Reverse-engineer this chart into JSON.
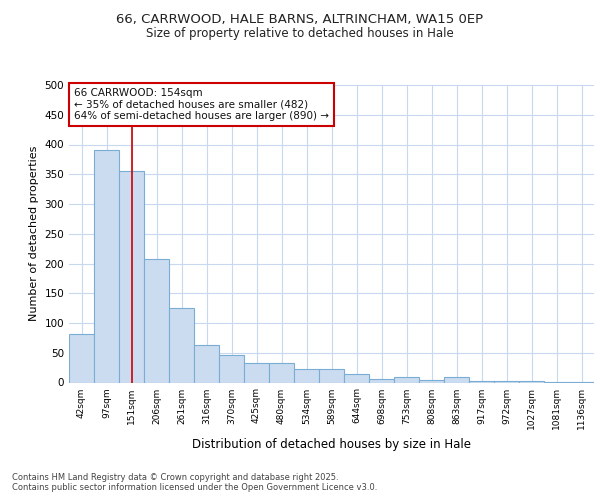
{
  "title_line1": "66, CARRWOOD, HALE BARNS, ALTRINCHAM, WA15 0EP",
  "title_line2": "Size of property relative to detached houses in Hale",
  "xlabel": "Distribution of detached houses by size in Hale",
  "ylabel": "Number of detached properties",
  "bar_labels": [
    "42sqm",
    "97sqm",
    "151sqm",
    "206sqm",
    "261sqm",
    "316sqm",
    "370sqm",
    "425sqm",
    "480sqm",
    "534sqm",
    "589sqm",
    "644sqm",
    "698sqm",
    "753sqm",
    "808sqm",
    "863sqm",
    "917sqm",
    "972sqm",
    "1027sqm",
    "1081sqm",
    "1136sqm"
  ],
  "bar_values": [
    82,
    390,
    356,
    207,
    125,
    63,
    46,
    32,
    32,
    23,
    23,
    14,
    6,
    9,
    5,
    10,
    3,
    2,
    2,
    1,
    1
  ],
  "bar_color": "#ccdcf0",
  "bar_edge_color": "#7aadd4",
  "grid_color": "#c8d8ee",
  "vline_x": 2,
  "vline_color": "#cc0000",
  "annotation_text": "66 CARRWOOD: 154sqm\n← 35% of detached houses are smaller (482)\n64% of semi-detached houses are larger (890) →",
  "annotation_box_facecolor": "#ffffff",
  "annotation_box_edgecolor": "#cc0000",
  "ylim": [
    0,
    500
  ],
  "yticks": [
    0,
    50,
    100,
    150,
    200,
    250,
    300,
    350,
    400,
    450,
    500
  ],
  "footer_text": "Contains HM Land Registry data © Crown copyright and database right 2025.\nContains public sector information licensed under the Open Government Licence v3.0.",
  "fig_bg_color": "#ffffff",
  "plot_bg_color": "#ffffff"
}
